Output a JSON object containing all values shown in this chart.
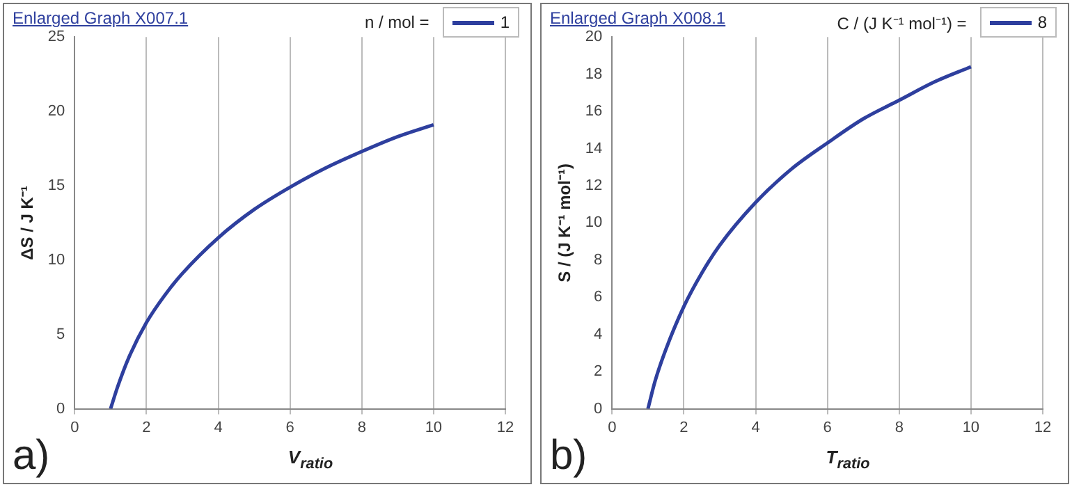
{
  "chart_data": [
    {
      "type": "line",
      "title": "Enlarged Graph X007.1",
      "legend_title": "n / mol =",
      "xlabel": "V$_{ratio}$",
      "ylabel": "ΔS / J K⁻¹",
      "annotations": [
        "a)"
      ],
      "x": [
        1,
        1.2,
        1.5,
        2,
        2.5,
        3,
        4,
        5,
        6,
        7,
        8,
        9,
        10
      ],
      "series": [
        {
          "name": "1",
          "color": "#2e3f9e",
          "values": [
            0,
            1.5,
            3.4,
            5.8,
            7.6,
            9.1,
            11.5,
            13.4,
            14.9,
            16.2,
            17.3,
            18.3,
            19.1
          ]
        }
      ],
      "xlim": [
        0,
        12
      ],
      "xticks": [
        0,
        2,
        4,
        6,
        8,
        10,
        12
      ],
      "ylim": [
        0,
        25
      ],
      "yticks": [
        0,
        5,
        10,
        15,
        20,
        25
      ],
      "grid": "x",
      "legend": "top right",
      "marker": "none"
    },
    {
      "type": "line",
      "title": "Enlarged Graph X008.1",
      "legend_title": "C / (J K⁻¹ mol⁻¹) =",
      "xlabel": "T$_{ratio}$",
      "ylabel": "S / (J K⁻¹ mol⁻¹)",
      "annotations": [
        "b)"
      ],
      "x": [
        1,
        1.2,
        1.5,
        2,
        2.5,
        3,
        4,
        5,
        6,
        7,
        8,
        9,
        10
      ],
      "series": [
        {
          "name": "8",
          "color": "#2e3f9e",
          "values": [
            0,
            1.5,
            3.2,
            5.5,
            7.3,
            8.8,
            11.1,
            12.9,
            14.3,
            15.6,
            16.6,
            17.6,
            18.4
          ]
        }
      ],
      "xlim": [
        0,
        12
      ],
      "xticks": [
        0,
        2,
        4,
        6,
        8,
        10,
        12
      ],
      "ylim": [
        0,
        20
      ],
      "yticks": [
        0,
        2,
        4,
        6,
        8,
        10,
        12,
        14,
        16,
        18,
        20
      ],
      "grid": "x",
      "legend": "top right",
      "marker": "none"
    }
  ]
}
